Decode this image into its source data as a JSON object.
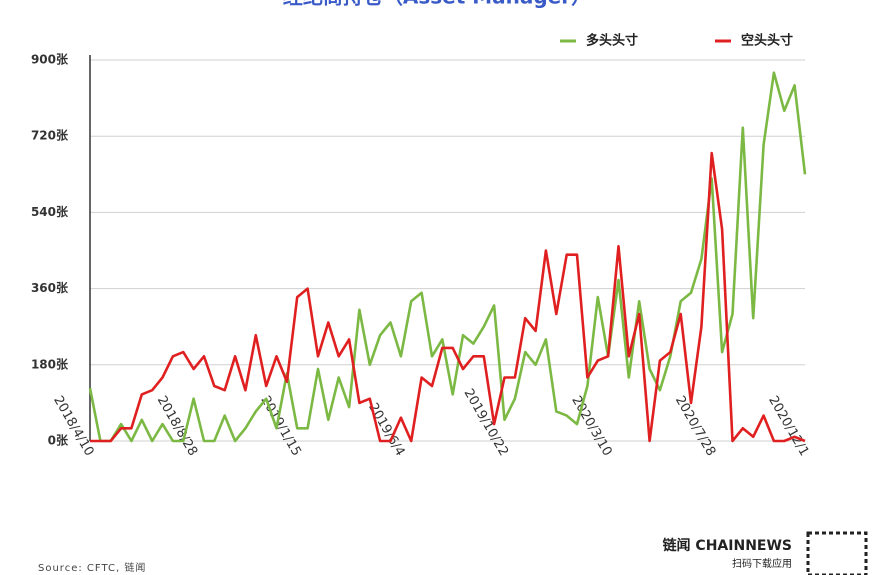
{
  "chart_data": {
    "type": "line",
    "title": "经纪商持仓（Asset Manager）",
    "source": "Source: CFTC, 链闻",
    "brand": "链闻 CHAINNEWS",
    "brand_sub": "扫码下载应用",
    "categories": [
      "2018/4/10",
      null,
      null,
      null,
      null,
      null,
      null,
      null,
      null,
      null,
      "2018/8/28",
      null,
      null,
      null,
      null,
      null,
      null,
      null,
      null,
      null,
      "2019/1/15",
      null,
      null,
      null,
      null,
      null,
      null,
      null,
      null,
      null,
      "2019/6/4",
      null,
      null,
      null,
      null,
      null,
      null,
      null,
      null,
      null,
      "2019/10/22",
      null,
      null,
      null,
      null,
      null,
      null,
      null,
      null,
      null,
      "2020/3/10",
      null,
      null,
      null,
      null,
      null,
      null,
      null,
      null,
      null,
      "2020/7/28",
      null,
      null,
      null,
      null,
      null,
      null,
      null,
      null,
      "2020/12/1"
    ],
    "series": [
      {
        "name": "多头头寸",
        "color": "#7cb944",
        "values": [
          125,
          0,
          0,
          40,
          0,
          50,
          0,
          40,
          0,
          0,
          100,
          0,
          0,
          60,
          0,
          30,
          70,
          100,
          30,
          160,
          30,
          30,
          170,
          50,
          150,
          80,
          310,
          180,
          250,
          280,
          200,
          330,
          350,
          200,
          240,
          110,
          250,
          230,
          270,
          320,
          50,
          100,
          210,
          180,
          240,
          70,
          60,
          40,
          130,
          340,
          200,
          380,
          150,
          330,
          170,
          120,
          200,
          330,
          350,
          430,
          620,
          210,
          300,
          740,
          290,
          700,
          870,
          780,
          840,
          630
        ]
      },
      {
        "name": "空头头寸",
        "color": "#e02020",
        "values": [
          0,
          0,
          0,
          30,
          30,
          110,
          120,
          150,
          200,
          210,
          170,
          200,
          130,
          120,
          200,
          120,
          250,
          130,
          200,
          140,
          340,
          360,
          200,
          280,
          200,
          240,
          90,
          100,
          0,
          0,
          55,
          0,
          150,
          130,
          220,
          220,
          170,
          200,
          200,
          40,
          150,
          150,
          290,
          260,
          450,
          300,
          440,
          440,
          150,
          190,
          200,
          460,
          200,
          300,
          0,
          190,
          210,
          300,
          90,
          270,
          680,
          500,
          0,
          30,
          10,
          60,
          0,
          0,
          10,
          0
        ]
      }
    ],
    "ylim": [
      0,
      900
    ],
    "yticks": [
      {
        "value": 0,
        "label": "0张"
      },
      {
        "value": 180,
        "label": "180张"
      },
      {
        "value": 360,
        "label": "360张"
      },
      {
        "value": 540,
        "label": "540张"
      },
      {
        "value": 720,
        "label": "720张"
      },
      {
        "value": 900,
        "label": "900张"
      }
    ],
    "grid": true
  }
}
